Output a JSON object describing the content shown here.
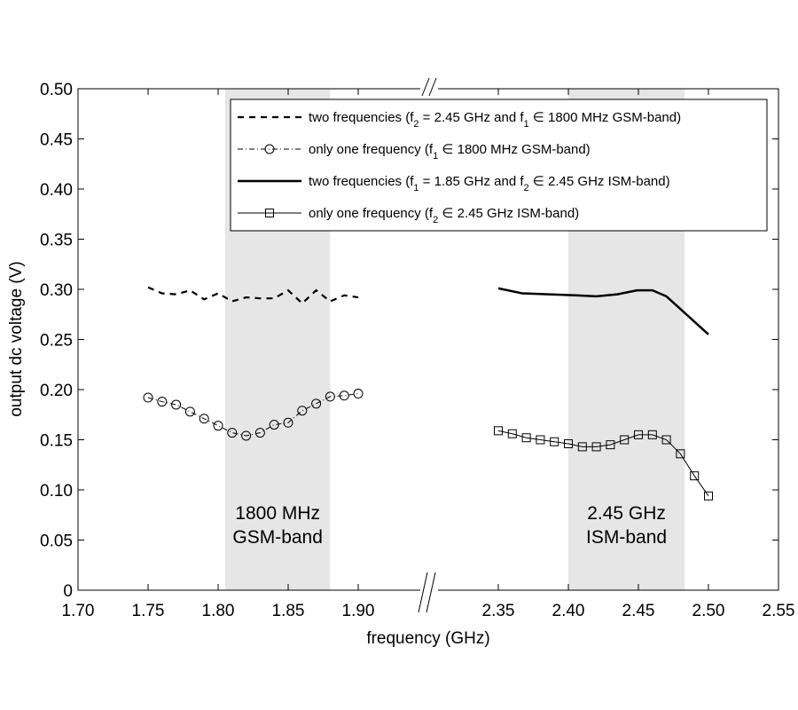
{
  "chart_data": {
    "type": "line",
    "xlabel": "frequency (GHz)",
    "ylabel": "output dc voltage (V)",
    "ylim": [
      0,
      0.5
    ],
    "x_segments": [
      [
        1.7,
        1.9
      ],
      [
        2.35,
        2.55
      ]
    ],
    "x_ticks": [
      "1.70",
      "1.75",
      "1.80",
      "1.85",
      "1.90",
      "2.35",
      "2.40",
      "2.45",
      "2.50",
      "2.55"
    ],
    "y_ticks": [
      "0",
      "0.05",
      "0.10",
      "0.15",
      "0.20",
      "0.25",
      "0.30",
      "0.35",
      "0.40",
      "0.45",
      "0.50"
    ],
    "bands": [
      {
        "range": [
          1.805,
          1.88
        ],
        "label1": "1800 MHz",
        "label2": "GSM-band"
      },
      {
        "range": [
          2.4,
          2.483
        ],
        "label1": "2.45 GHz",
        "label2": "ISM-band"
      }
    ],
    "legend_position": "top-right",
    "series": [
      {
        "name": "two frequencies (f2 = 2.45 GHz and f1 ∈ 1800 MHz GSM-band)",
        "style": "dashed",
        "x": [
          1.75,
          1.76,
          1.77,
          1.78,
          1.79,
          1.8,
          1.81,
          1.82,
          1.83,
          1.84,
          1.85,
          1.86,
          1.87,
          1.88,
          1.89,
          1.9
        ],
        "y": [
          0.302,
          0.296,
          0.295,
          0.299,
          0.29,
          0.296,
          0.288,
          0.292,
          0.291,
          0.291,
          0.299,
          0.286,
          0.299,
          0.288,
          0.294,
          0.292
        ]
      },
      {
        "name": "only one frequency (f1 ∈ 1800 MHz GSM-band)",
        "style": "dashdot-circle",
        "x": [
          1.75,
          1.76,
          1.77,
          1.78,
          1.79,
          1.8,
          1.81,
          1.82,
          1.83,
          1.84,
          1.85,
          1.86,
          1.87,
          1.88,
          1.89,
          1.9
        ],
        "y": [
          0.192,
          0.188,
          0.185,
          0.178,
          0.171,
          0.164,
          0.157,
          0.154,
          0.157,
          0.165,
          0.167,
          0.179,
          0.186,
          0.193,
          0.194,
          0.196
        ]
      },
      {
        "name": "two frequencies (f1 = 1.85 GHz and f2 ∈ 2.45 GHz ISM-band)",
        "style": "solid",
        "x": [
          2.35,
          2.367,
          2.386,
          2.405,
          2.42,
          2.435,
          2.449,
          2.46,
          2.47,
          2.5
        ],
        "y": [
          0.301,
          0.296,
          0.295,
          0.294,
          0.293,
          0.295,
          0.299,
          0.299,
          0.293,
          0.255
        ]
      },
      {
        "name": "only one frequency (f2 ∈ 2.45 GHz ISM-band)",
        "style": "thin-square",
        "x": [
          2.35,
          2.36,
          2.37,
          2.38,
          2.39,
          2.4,
          2.41,
          2.42,
          2.43,
          2.44,
          2.45,
          2.46,
          2.47,
          2.48,
          2.49,
          2.5
        ],
        "y": [
          0.159,
          0.156,
          0.152,
          0.15,
          0.148,
          0.146,
          0.143,
          0.143,
          0.145,
          0.15,
          0.155,
          0.155,
          0.15,
          0.136,
          0.114,
          0.094
        ]
      }
    ],
    "legend": [
      {
        "pre": "two frequencies (f",
        "s1": "2",
        "mid": " = 2.45 GHz and f",
        "s2": "1",
        "post": " ∈ 1800 MHz GSM-band)"
      },
      {
        "pre": "only one frequency (f",
        "s1": "1",
        "mid": " ∈ 1800 MHz GSM-band)",
        "s2": "",
        "post": ""
      },
      {
        "pre": "two frequencies (f",
        "s1": "1",
        "mid": " = 1.85 GHz and f",
        "s2": "2",
        "post": " ∈ 2.45 GHz ISM-band)"
      },
      {
        "pre": "only one frequency (f",
        "s1": "2",
        "mid": " ∈ 2.45 GHz ISM-band)",
        "s2": "",
        "post": ""
      }
    ]
  }
}
